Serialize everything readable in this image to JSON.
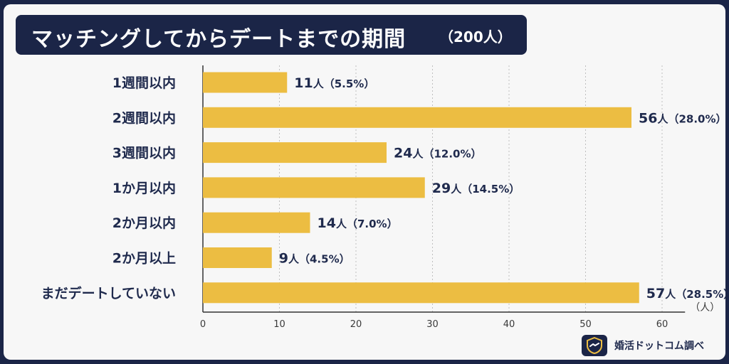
{
  "header": {
    "title": "マッチングしてからデートまでの期間",
    "subtitle": "（200人）"
  },
  "brand": {
    "text": "婚活ドットコム調べ"
  },
  "colors": {
    "bar": "#ecbd42",
    "navy": "#1b2547"
  },
  "chart_data": {
    "type": "bar",
    "orientation": "horizontal",
    "title": "マッチングしてからデートまでの期間",
    "subtitle": "（200人）",
    "categories": [
      "1週間以内",
      "2週間以内",
      "3週間以内",
      "1か月以内",
      "2か月以内",
      "2か月以上",
      "まだデートしていない"
    ],
    "values": [
      11,
      56,
      24,
      29,
      14,
      9,
      57
    ],
    "percentages": [
      "（5.5%）",
      "（28.0%）",
      "（12.0%）",
      "（14.5%）",
      "（7.0%）",
      "（4.5%）",
      "（28.5%）"
    ],
    "value_unit": "人",
    "x_unit_label": "（人）",
    "xlim": [
      0,
      63
    ],
    "x_ticks": [
      0,
      10,
      20,
      30,
      40,
      50,
      60
    ],
    "grid": true
  }
}
